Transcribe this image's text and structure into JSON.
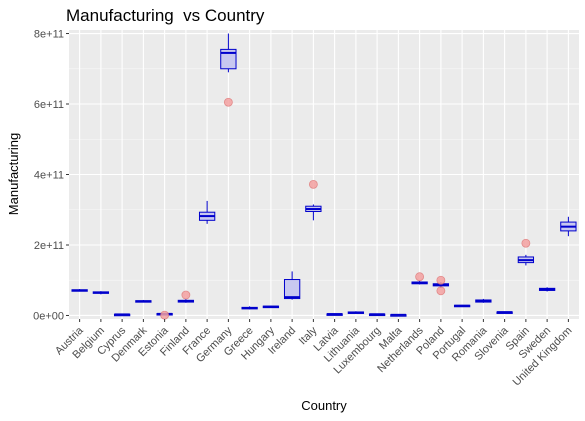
{
  "chart_data": {
    "type": "box",
    "title": "Manufacturing  vs Country",
    "xlabel": "Country",
    "ylabel": "Manufacturing",
    "ylim": [
      -10000000000,
      810000000000
    ],
    "yticks": [
      0,
      200000000000,
      400000000000,
      600000000000,
      800000000000
    ],
    "ytick_labels": [
      "0e+00",
      "2e+11",
      "4e+11",
      "6e+11",
      "8e+11"
    ],
    "grid": true,
    "colors": {
      "panel": "#ebebeb",
      "grid_major": "#ffffff",
      "box_fill": "#c8c8f0",
      "box_line": "#0000cc",
      "outlier_fill": "#f4a0a0",
      "outlier_stroke": "#e07878"
    },
    "categories": [
      "Austria",
      "Belgium",
      "Cyprus",
      "Denmark",
      "Estonia",
      "Finland",
      "France",
      "Germany",
      "Greece",
      "Hungary",
      "Ireland",
      "Italy",
      "Latvia",
      "Lithuania",
      "Luxembourg",
      "Malta",
      "Netherlands",
      "Poland",
      "Portugal",
      "Romania",
      "Slovenia",
      "Spain",
      "Sweden",
      "United Kingdom"
    ],
    "boxes": [
      {
        "category": "Austria",
        "min": 68000000000,
        "q1": 70000000000,
        "median": 71000000000,
        "q3": 73000000000,
        "max": 75000000000,
        "outliers": []
      },
      {
        "category": "Belgium",
        "min": 60000000000,
        "q1": 63000000000,
        "median": 65000000000,
        "q3": 67000000000,
        "max": 69000000000,
        "outliers": []
      },
      {
        "category": "Cyprus",
        "min": 2000000000,
        "q1": 2500000000,
        "median": 3000000000,
        "q3": 3500000000,
        "max": 4000000000,
        "outliers": []
      },
      {
        "category": "Denmark",
        "min": 37000000000,
        "q1": 39000000000,
        "median": 40000000000,
        "q3": 42000000000,
        "max": 44000000000,
        "outliers": []
      },
      {
        "category": "Estonia",
        "min": 3000000000,
        "q1": 4000000000,
        "median": 4500000000,
        "q3": 5500000000,
        "max": 6500000000,
        "outliers": [
          1000000000
        ]
      },
      {
        "category": "Finland",
        "min": 36000000000,
        "q1": 38000000000,
        "median": 40000000000,
        "q3": 43000000000,
        "max": 47000000000,
        "outliers": [
          58000000000
        ]
      },
      {
        "category": "France",
        "min": 260000000000,
        "q1": 270000000000,
        "median": 282000000000,
        "q3": 293000000000,
        "max": 325000000000,
        "outliers": []
      },
      {
        "category": "Germany",
        "min": 690000000000,
        "q1": 700000000000,
        "median": 745000000000,
        "q3": 755000000000,
        "max": 800000000000,
        "outliers": [
          605000000000
        ]
      },
      {
        "category": "Greece",
        "min": 17000000000,
        "q1": 19000000000,
        "median": 21000000000,
        "q3": 23000000000,
        "max": 26000000000,
        "outliers": []
      },
      {
        "category": "Hungary",
        "min": 23000000000,
        "q1": 24000000000,
        "median": 25000000000,
        "q3": 26500000000,
        "max": 28000000000,
        "outliers": []
      },
      {
        "category": "Ireland",
        "min": 45000000000,
        "q1": 48000000000,
        "median": 52000000000,
        "q3": 102000000000,
        "max": 125000000000,
        "outliers": []
      },
      {
        "category": "Italy",
        "min": 270000000000,
        "q1": 295000000000,
        "median": 302000000000,
        "q3": 310000000000,
        "max": 315000000000,
        "outliers": [
          372000000000
        ]
      },
      {
        "category": "Latvia",
        "min": 3000000000,
        "q1": 3500000000,
        "median": 4000000000,
        "q3": 4500000000,
        "max": 5000000000,
        "outliers": []
      },
      {
        "category": "Lithuania",
        "min": 6000000000,
        "q1": 7000000000,
        "median": 8000000000,
        "q3": 10000000000,
        "max": 12000000000,
        "outliers": []
      },
      {
        "category": "Luxembourg",
        "min": 2500000000,
        "q1": 3000000000,
        "median": 3500000000,
        "q3": 4000000000,
        "max": 4500000000,
        "outliers": []
      },
      {
        "category": "Malta",
        "min": 1000000000,
        "q1": 1500000000,
        "median": 1800000000,
        "q3": 2200000000,
        "max": 2500000000,
        "outliers": []
      },
      {
        "category": "Netherlands",
        "min": 88000000000,
        "q1": 90000000000,
        "median": 92000000000,
        "q3": 95000000000,
        "max": 98000000000,
        "outliers": [
          110000000000
        ]
      },
      {
        "category": "Poland",
        "min": 78000000000,
        "q1": 84000000000,
        "median": 87000000000,
        "q3": 90000000000,
        "max": 95000000000,
        "outliers": [
          100000000000,
          70000000000
        ]
      },
      {
        "category": "Portugal",
        "min": 25000000000,
        "q1": 26000000000,
        "median": 27500000000,
        "q3": 29000000000,
        "max": 30000000000,
        "outliers": []
      },
      {
        "category": "Romania",
        "min": 36000000000,
        "q1": 38000000000,
        "median": 41000000000,
        "q3": 44000000000,
        "max": 47000000000,
        "outliers": []
      },
      {
        "category": "Slovenia",
        "min": 8500000000,
        "q1": 9000000000,
        "median": 9500000000,
        "q3": 10000000000,
        "max": 10500000000,
        "outliers": []
      },
      {
        "category": "Spain",
        "min": 142000000000,
        "q1": 150000000000,
        "median": 157000000000,
        "q3": 166000000000,
        "max": 172000000000,
        "outliers": [
          205000000000
        ]
      },
      {
        "category": "Sweden",
        "min": 68000000000,
        "q1": 71000000000,
        "median": 74000000000,
        "q3": 77000000000,
        "max": 80000000000,
        "outliers": []
      },
      {
        "category": "United Kingdom",
        "min": 225000000000,
        "q1": 240000000000,
        "median": 252000000000,
        "q3": 265000000000,
        "max": 280000000000,
        "outliers": []
      }
    ]
  }
}
